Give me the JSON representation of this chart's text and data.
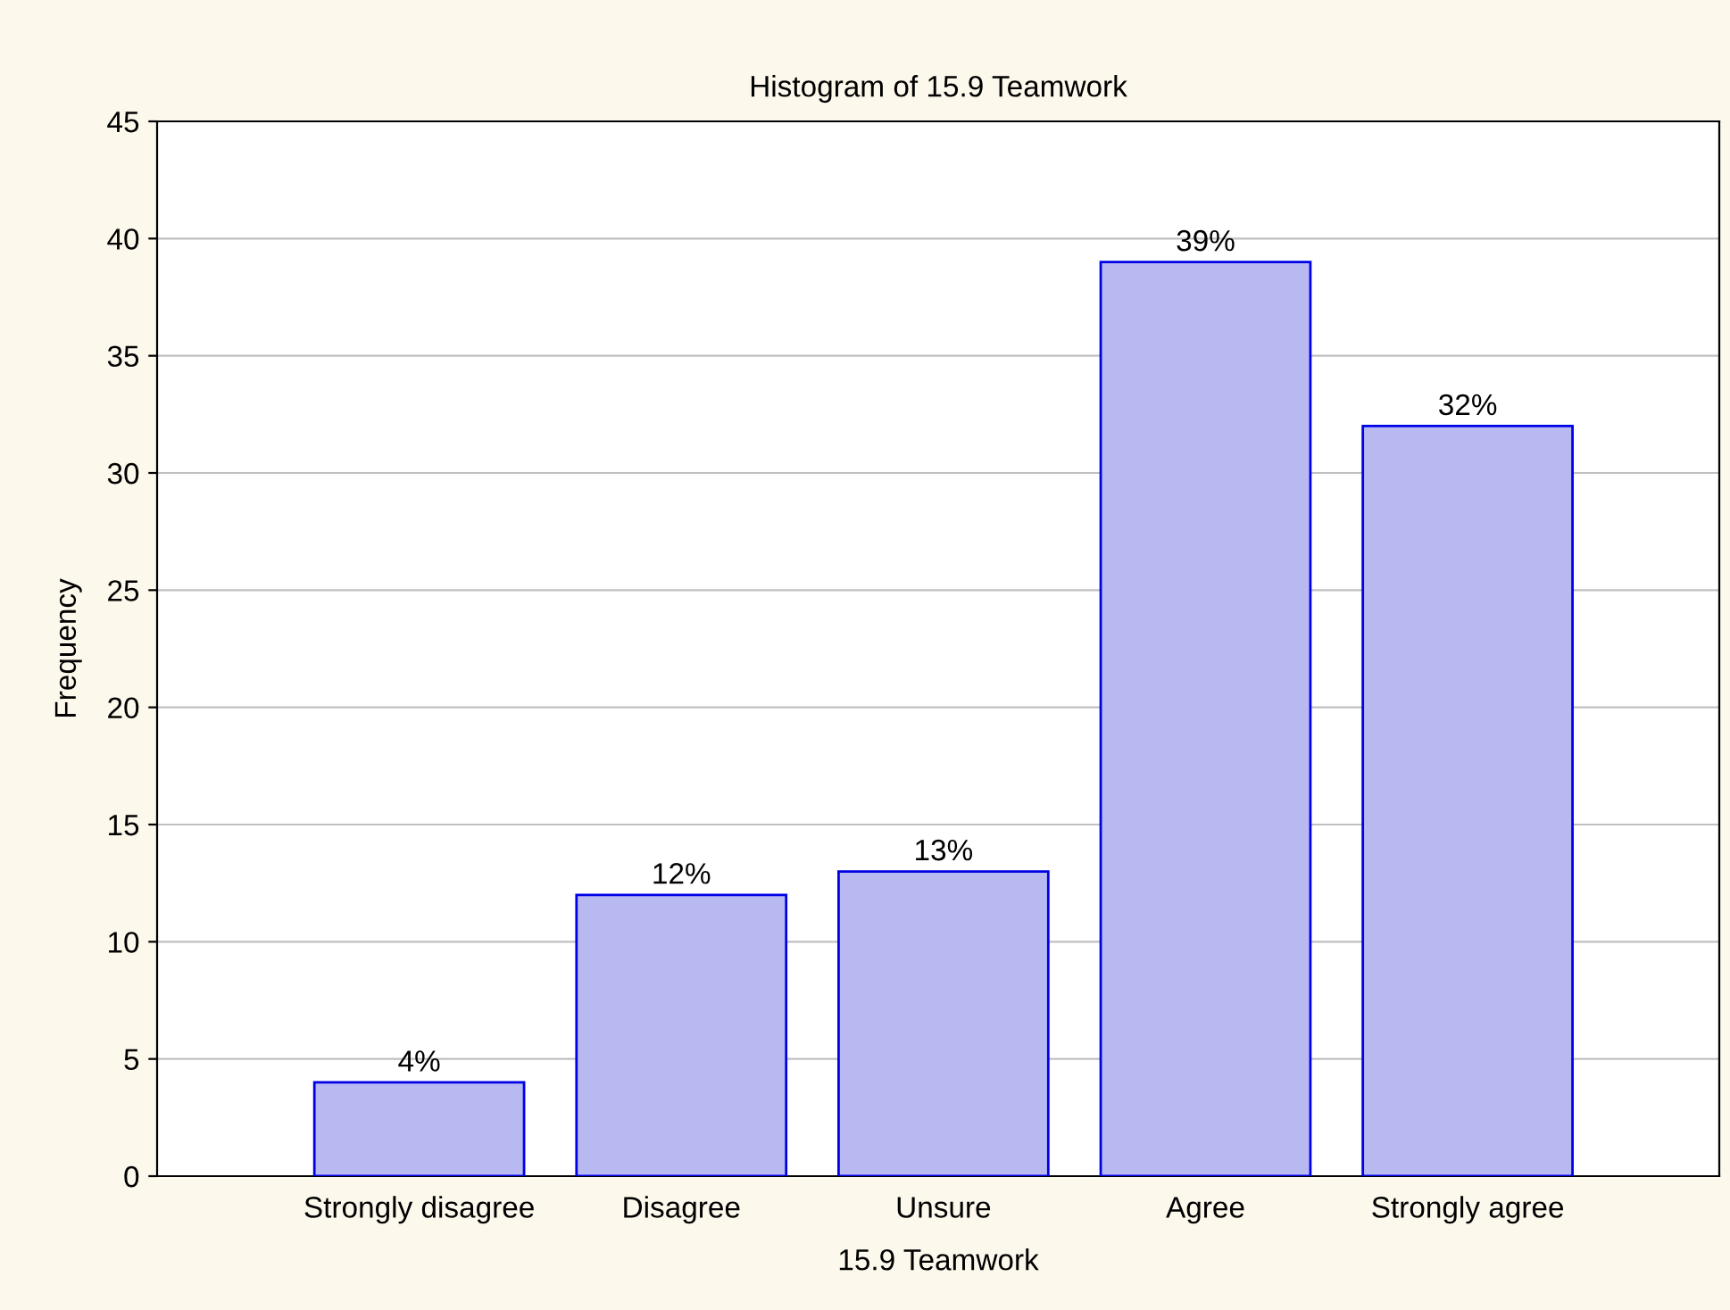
{
  "chart_data": {
    "type": "bar",
    "title": "Histogram of 15.9 Teamwork",
    "xlabel": "15.9 Teamwork",
    "ylabel": "Frequency",
    "categories": [
      "Strongly disagree",
      "Disagree",
      "Unsure",
      "Agree",
      "Strongly agree"
    ],
    "values": [
      4,
      12,
      13,
      39,
      32
    ],
    "value_labels": [
      "4%",
      "12%",
      "13%",
      "39%",
      "32%"
    ],
    "color": "#b9b9f2",
    "ylim": [
      0,
      45
    ],
    "yticks": [
      0,
      5,
      10,
      15,
      20,
      25,
      30,
      35,
      40,
      45
    ],
    "grid": "y",
    "legend": false
  }
}
